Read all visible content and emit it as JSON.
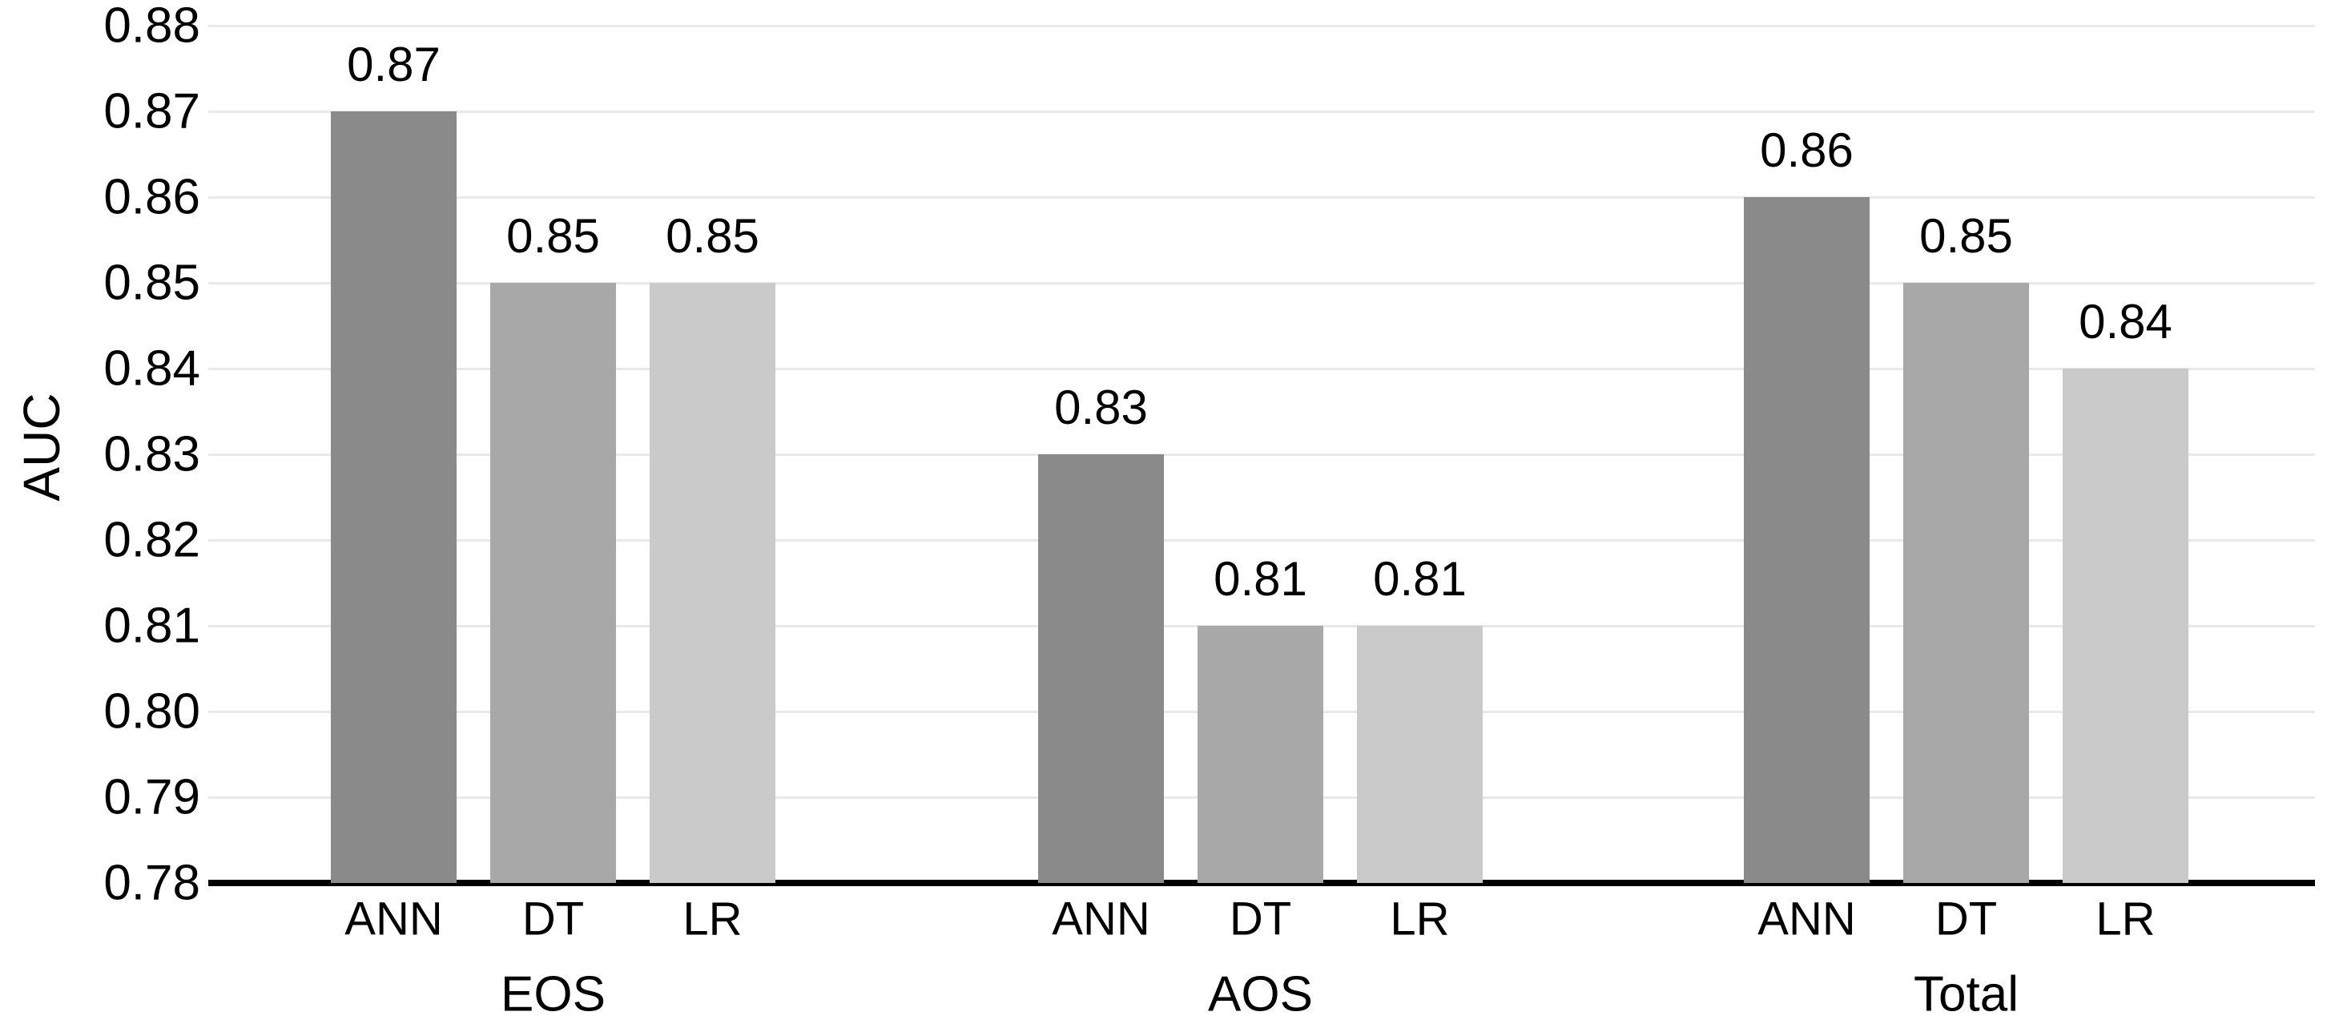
{
  "chart_data": {
    "type": "bar",
    "title": "",
    "xlabel": "",
    "ylabel": "AUC",
    "ylim": [
      0.78,
      0.88
    ],
    "ytick_step": 0.01,
    "yticks": [
      "0.88",
      "0.87",
      "0.86",
      "0.85",
      "0.84",
      "0.83",
      "0.82",
      "0.81",
      "0.80",
      "0.79",
      "0.78"
    ],
    "grid": true,
    "legend_position": "none",
    "categories": [
      "EOS",
      "AOS",
      "Total"
    ],
    "series": [
      {
        "name": "ANN",
        "values": [
          0.87,
          0.83,
          0.86
        ],
        "color": "#8a8a8a"
      },
      {
        "name": "DT",
        "values": [
          0.85,
          0.81,
          0.85
        ],
        "color": "#a8a8a8"
      },
      {
        "name": "LR",
        "values": [
          0.85,
          0.81,
          0.84
        ],
        "color": "#cacaca"
      }
    ],
    "groups": [
      {
        "label": "EOS",
        "bars": [
          {
            "label": "ANN",
            "value": 0.87,
            "display": "0.87"
          },
          {
            "label": "DT",
            "value": 0.85,
            "display": "0.85"
          },
          {
            "label": "LR",
            "value": 0.85,
            "display": "0.85"
          }
        ]
      },
      {
        "label": "AOS",
        "bars": [
          {
            "label": "ANN",
            "value": 0.83,
            "display": "0.83"
          },
          {
            "label": "DT",
            "value": 0.81,
            "display": "0.81"
          },
          {
            "label": "LR",
            "value": 0.81,
            "display": "0.81"
          }
        ]
      },
      {
        "label": "Total",
        "bars": [
          {
            "label": "ANN",
            "value": 0.86,
            "display": "0.86"
          },
          {
            "label": "DT",
            "value": 0.85,
            "display": "0.85"
          },
          {
            "label": "LR",
            "value": 0.84,
            "display": "0.84"
          }
        ]
      }
    ],
    "series_colors": {
      "ANN": "#8a8a8a",
      "DT": "#a8a8a8",
      "LR": "#cacaca"
    },
    "gridline_color": "#e9e9e9",
    "axis_color": "#000000",
    "text_color": "#000000",
    "background_color": "#ffffff"
  }
}
